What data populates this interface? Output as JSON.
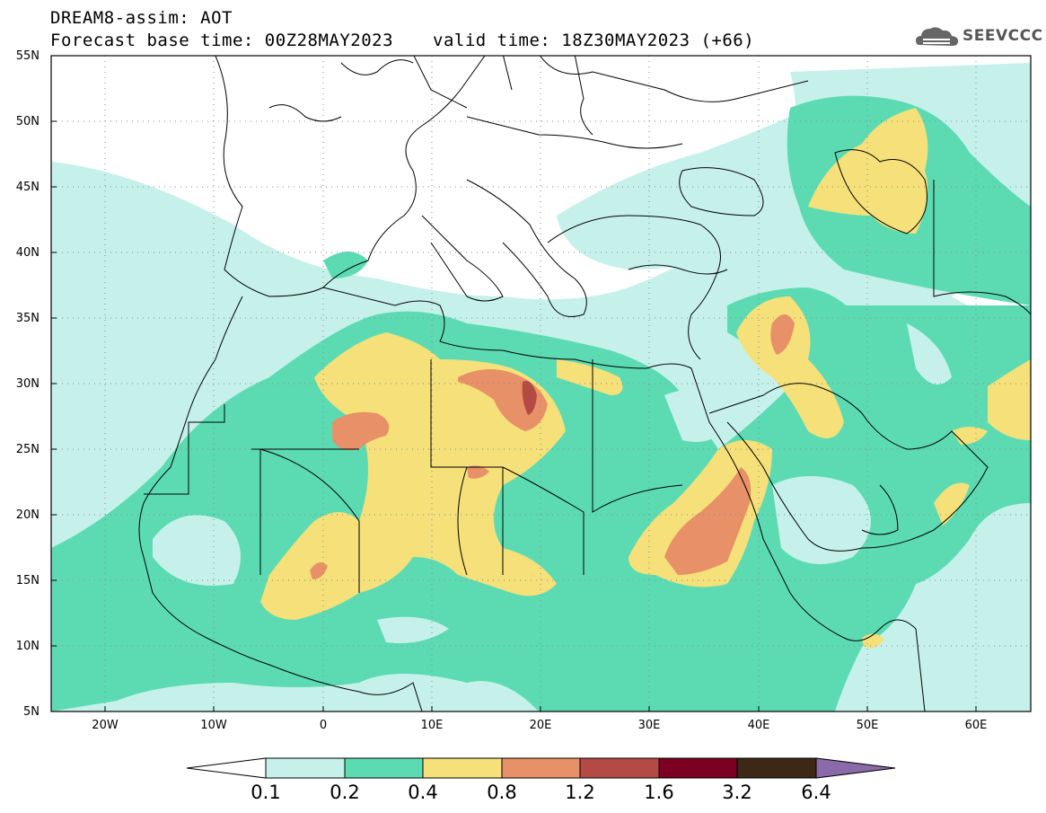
{
  "header": {
    "title": "DREAM8-assim: AOT",
    "base_time": "Forecast base time: 00Z28MAY2023",
    "valid_time": "valid time: 18Z30MAY2023 (+66)",
    "logo_text": "SEEVCCC",
    "logo_icon": "cloud-logo-icon"
  },
  "map": {
    "lon_range": [
      -25,
      65
    ],
    "lat_range": [
      5,
      55
    ],
    "lat_labels": [
      "55N",
      "50N",
      "45N",
      "40N",
      "35N",
      "30N",
      "25N",
      "20N",
      "15N",
      "10N",
      "5N"
    ],
    "lon_labels": [
      "20W",
      "10W",
      "0",
      "10E",
      "20E",
      "30E",
      "40E",
      "50E",
      "60E"
    ],
    "grid": "dotted",
    "land_border_color": "#000000"
  },
  "colorbar": {
    "labels": [
      "0.1",
      "0.2",
      "0.4",
      "0.8",
      "1.2",
      "1.6",
      "3.2",
      "6.4"
    ],
    "colors": [
      "#ffffff",
      "#c6f1eb",
      "#5cdbb3",
      "#f5e07a",
      "#e89067",
      "#b44a44",
      "#7d0022",
      "#3d2818",
      "#8a6aa8"
    ],
    "extend": "both"
  },
  "aot_colors": {
    "c01": "#c6f1eb",
    "c02": "#5cdbb3",
    "c04": "#f5e07a",
    "c08": "#e89067",
    "c12": "#b44a44"
  }
}
